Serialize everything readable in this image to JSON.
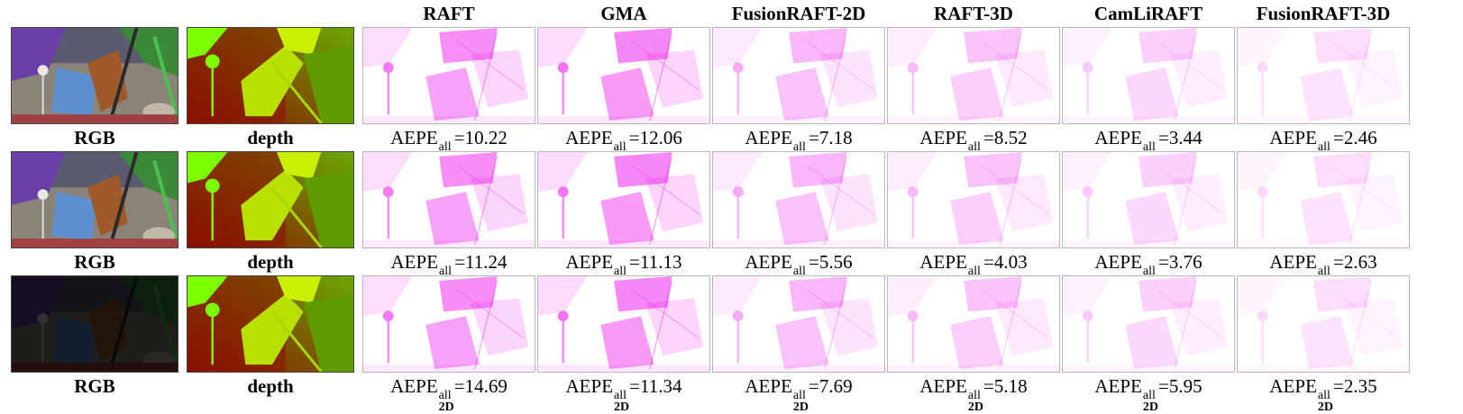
{
  "columns": [
    {
      "label": ""
    },
    {
      "label": ""
    },
    {
      "label": "RAFT"
    },
    {
      "label": "GMA"
    },
    {
      "label": "FusionRAFT-2D"
    },
    {
      "label": "RAFT-3D"
    },
    {
      "label": "CamLiRAFT"
    },
    {
      "label": "FusionRAFT-3D"
    }
  ],
  "metric": {
    "name": "AEPE",
    "superscript": "all",
    "subscript": "2D"
  },
  "rows": [
    {
      "rgb_label": "RGB",
      "depth_label": "depth",
      "dark": false,
      "values": [
        "10.22",
        "12.06",
        "7.18",
        "8.52",
        "3.44",
        "2.46"
      ]
    },
    {
      "rgb_label": "RGB",
      "depth_label": "depth",
      "dark": false,
      "values": [
        "11.24",
        "11.13",
        "5.56",
        "4.03",
        "3.76",
        "2.63"
      ]
    },
    {
      "rgb_label": "RGB",
      "depth_label": "depth",
      "dark": true,
      "values": [
        "14.69",
        "11.34",
        "7.69",
        "5.18",
        "5.95",
        "2.35"
      ]
    }
  ],
  "colors": {
    "flow_magenta": "#ee22ee",
    "depth_near": "#7cff00",
    "depth_far": "#8b0f00"
  }
}
